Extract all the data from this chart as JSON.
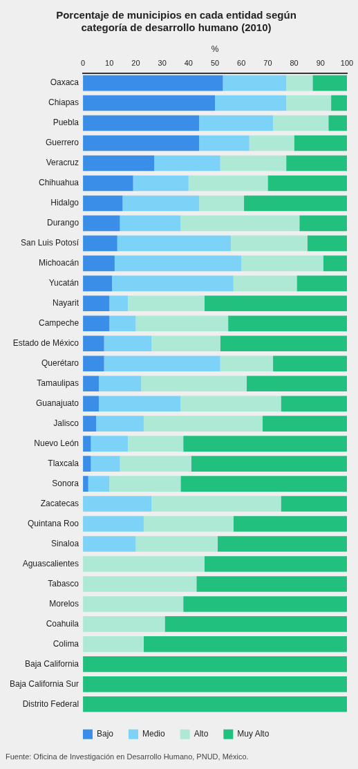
{
  "chart_data": {
    "type": "bar",
    "stacked": true,
    "orientation": "horizontal",
    "title": "Porcentaje de municipios en cada entidad según categoría de desarrollo humano (2010)",
    "xlabel": "%",
    "categories": [
      "Oaxaca",
      "Chiapas",
      "Puebla",
      "Guerrero",
      "Veracruz",
      "Chihuahua",
      "Hidalgo",
      "Durango",
      "San Luis Potosí",
      "Michoacán",
      "Yucatán",
      "Nayarit",
      "Campeche",
      "Estado de México",
      "Querétaro",
      "Tamaulipas",
      "Guanajuato",
      "Jalisco",
      "Nuevo León",
      "Tlaxcala",
      "Sonora",
      "Zacatecas",
      "Quintana Roo",
      "Sinaloa",
      "Aguascalientes",
      "Tabasco",
      "Morelos",
      "Coahuila",
      "Colima",
      "Baja California",
      "Baja California Sur",
      "Distrito Federal"
    ],
    "series": [
      {
        "name": "Bajo",
        "color": "#3b8ee8",
        "values": [
          53,
          50,
          44,
          44,
          27,
          19,
          15,
          14,
          13,
          12,
          11,
          10,
          10,
          8,
          8,
          6,
          6,
          5,
          3,
          3,
          2,
          0,
          0,
          0,
          0,
          0,
          0,
          0,
          0,
          0,
          0,
          0
        ]
      },
      {
        "name": "Medio",
        "color": "#7dd3f7",
        "values": [
          24,
          27,
          28,
          19,
          25,
          21,
          29,
          23,
          43,
          48,
          46,
          7,
          10,
          18,
          44,
          16,
          31,
          18,
          14,
          11,
          8,
          26,
          23,
          20,
          0,
          0,
          0,
          0,
          0,
          0,
          0,
          0
        ]
      },
      {
        "name": "Alto",
        "color": "#aee9d6",
        "values": [
          10,
          17,
          21,
          17,
          25,
          30,
          17,
          45,
          29,
          31,
          24,
          29,
          35,
          26,
          20,
          40,
          38,
          45,
          21,
          27,
          27,
          49,
          34,
          31,
          46,
          43,
          38,
          31,
          23,
          0,
          0,
          0
        ]
      },
      {
        "name": "Muy Alto",
        "color": "#22c07e",
        "values": [
          13,
          6,
          7,
          20,
          23,
          30,
          39,
          18,
          15,
          9,
          19,
          54,
          45,
          48,
          28,
          38,
          25,
          32,
          62,
          59,
          63,
          25,
          43,
          49,
          54,
          57,
          62,
          69,
          77,
          100,
          100,
          100
        ]
      }
    ],
    "xlim": [
      0,
      100
    ],
    "xticks": [
      0,
      10,
      20,
      30,
      40,
      50,
      60,
      70,
      80,
      90,
      100
    ],
    "grid": false,
    "legend": "bottom",
    "annotations": [
      "Fuente: Oficina de Investigación en Desarrollo Humano, PNUD, México."
    ]
  }
}
